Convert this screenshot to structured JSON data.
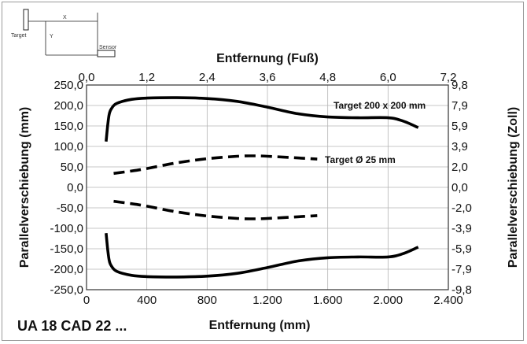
{
  "diagram": {
    "x_label": "X",
    "y_label": "Y",
    "target_label": "Target",
    "sensor_label": "Sensor"
  },
  "model_name": "UA 18 CAD 22 ...",
  "chart_data": {
    "type": "line",
    "xlabel": "Entfernung (mm)",
    "xlabel_top": "Entfernung (Fuß)",
    "ylabel": "Parallelverschiebung (mm)",
    "ylabel_right": "Parallelverschiebung (Zoll)",
    "xlim": [
      0,
      2400
    ],
    "ylim": [
      -250,
      250
    ],
    "x_ticks": [
      "0",
      "400",
      "800",
      "1.200",
      "1.600",
      "2.000",
      "2.400"
    ],
    "x_tick_values": [
      0,
      400,
      800,
      1200,
      1600,
      2000,
      2400
    ],
    "x_top_ticks": [
      "0,0",
      "1,2",
      "2,4",
      "3,6",
      "4,8",
      "6,0",
      "7,2"
    ],
    "y_ticks": [
      "250,0",
      "200,0",
      "150,0",
      "100,0",
      "50,0",
      "0,0",
      "-50,0",
      "-100,0",
      "-150,0",
      "-200,0",
      "-250,0"
    ],
    "y_tick_values": [
      250,
      200,
      150,
      100,
      50,
      0,
      -50,
      -100,
      -150,
      -200,
      -250
    ],
    "y_right_ticks": [
      "9,8",
      "7,9",
      "5,9",
      "3,9",
      "2,0",
      "0,0",
      "-2,0",
      "-3,9",
      "-5,9",
      "-7,9",
      "-9,8"
    ],
    "grid": true,
    "series": [
      {
        "name": "Target 200 x 200 mm",
        "style": "solid",
        "upper": [
          [
            130,
            112
          ],
          [
            140,
            150
          ],
          [
            150,
            178
          ],
          [
            165,
            192
          ],
          [
            200,
            205
          ],
          [
            300,
            215
          ],
          [
            400,
            218
          ],
          [
            600,
            219
          ],
          [
            800,
            217
          ],
          [
            1000,
            210
          ],
          [
            1200,
            196
          ],
          [
            1400,
            180
          ],
          [
            1600,
            172
          ],
          [
            1800,
            170
          ],
          [
            2000,
            170
          ],
          [
            2100,
            162
          ],
          [
            2200,
            146
          ]
        ],
        "lower": [
          [
            130,
            -112
          ],
          [
            140,
            -150
          ],
          [
            150,
            -178
          ],
          [
            165,
            -192
          ],
          [
            200,
            -205
          ],
          [
            300,
            -215
          ],
          [
            400,
            -218
          ],
          [
            600,
            -219
          ],
          [
            800,
            -217
          ],
          [
            1000,
            -210
          ],
          [
            1200,
            -196
          ],
          [
            1400,
            -180
          ],
          [
            1600,
            -172
          ],
          [
            1800,
            -170
          ],
          [
            2000,
            -170
          ],
          [
            2100,
            -162
          ],
          [
            2200,
            -146
          ]
        ]
      },
      {
        "name": "Target Ø 25 mm",
        "style": "dashed",
        "upper": [
          [
            180,
            34
          ],
          [
            300,
            40
          ],
          [
            400,
            46
          ],
          [
            600,
            60
          ],
          [
            800,
            70
          ],
          [
            1000,
            76
          ],
          [
            1100,
            77
          ],
          [
            1200,
            76
          ],
          [
            1400,
            72
          ],
          [
            1530,
            69
          ]
        ],
        "lower": [
          [
            180,
            -34
          ],
          [
            300,
            -40
          ],
          [
            400,
            -46
          ],
          [
            600,
            -60
          ],
          [
            800,
            -70
          ],
          [
            1000,
            -76
          ],
          [
            1100,
            -77
          ],
          [
            1200,
            -76
          ],
          [
            1400,
            -72
          ],
          [
            1530,
            -69
          ]
        ]
      }
    ]
  }
}
